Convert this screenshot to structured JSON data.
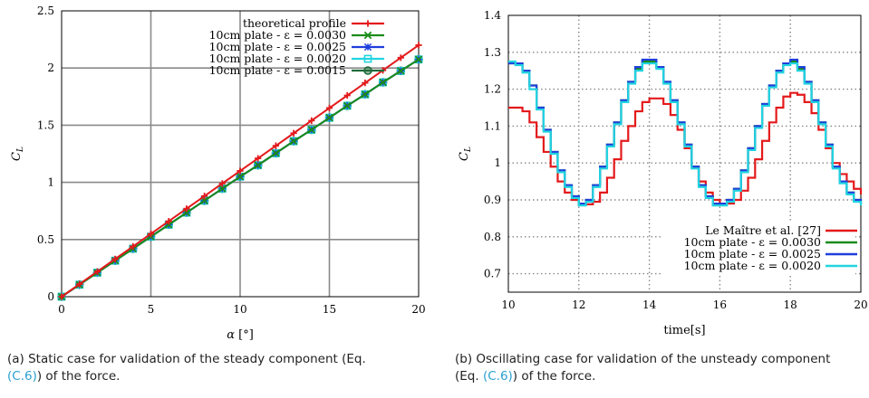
{
  "figures": [
    {
      "caption": {
        "text_before": "(a) Static case for validation of the steady component (Eq. ",
        "ref": "(C.6)",
        "text_after": ") of the force."
      }
    },
    {
      "caption": {
        "text_before": "(b) Oscillating case for validation of the unsteady component (Eq. ",
        "ref": "(C.6)",
        "text_after": ") of the force."
      }
    }
  ],
  "chart_data": [
    {
      "type": "line",
      "xlabel": "α [°]",
      "ylabel": "C_L",
      "xlim": [
        0,
        20
      ],
      "ylim": [
        0,
        2.5
      ],
      "xticks": [
        "0",
        "5",
        "10",
        "15",
        "20"
      ],
      "yticks": [
        "0",
        "0.5",
        "1",
        "1.5",
        "2",
        "2.5"
      ],
      "grid": true,
      "legend_position": "top-right",
      "x": [
        0,
        1,
        2,
        3,
        4,
        5,
        6,
        7,
        8,
        9,
        10,
        11,
        12,
        13,
        14,
        15,
        16,
        17,
        18,
        19,
        20
      ],
      "series": [
        {
          "name": "theoretical profile",
          "color": "#e31a1c",
          "marker": "plus",
          "values": [
            0,
            0.11,
            0.22,
            0.33,
            0.44,
            0.55,
            0.66,
            0.77,
            0.88,
            0.99,
            1.1,
            1.21,
            1.32,
            1.43,
            1.54,
            1.65,
            1.76,
            1.87,
            1.98,
            2.09,
            2.2
          ]
        },
        {
          "name": "10cm plate - ε = 0.0030",
          "color": "#1a8c1a",
          "marker": "x",
          "values": [
            0,
            0.105,
            0.21,
            0.315,
            0.42,
            0.525,
            0.63,
            0.735,
            0.84,
            0.945,
            1.05,
            1.15,
            1.255,
            1.36,
            1.46,
            1.565,
            1.67,
            1.77,
            1.875,
            1.975,
            2.075
          ]
        },
        {
          "name": "10cm plate - ε = 0.0025",
          "color": "#1f3fdc",
          "marker": "asterisk",
          "values": [
            0,
            0.105,
            0.21,
            0.315,
            0.42,
            0.525,
            0.63,
            0.735,
            0.84,
            0.945,
            1.05,
            1.15,
            1.255,
            1.36,
            1.46,
            1.565,
            1.67,
            1.77,
            1.875,
            1.975,
            2.075
          ]
        },
        {
          "name": "10cm plate - ε = 0.0020",
          "color": "#21d4e0",
          "marker": "square",
          "values": [
            0,
            0.105,
            0.21,
            0.315,
            0.42,
            0.525,
            0.63,
            0.735,
            0.84,
            0.945,
            1.05,
            1.15,
            1.255,
            1.36,
            1.46,
            1.565,
            1.67,
            1.77,
            1.875,
            1.975,
            2.075
          ]
        },
        {
          "name": "10cm plate - ε = 0.0015",
          "color": "#1f6b3a",
          "marker": "circle",
          "values": [
            0,
            0.105,
            0.21,
            0.315,
            0.42,
            0.525,
            0.63,
            0.735,
            0.84,
            0.945,
            1.05,
            1.15,
            1.255,
            1.36,
            1.46,
            1.565,
            1.67,
            1.77,
            1.875,
            1.975,
            2.075
          ]
        }
      ]
    },
    {
      "type": "line",
      "xlabel": "time[s]",
      "ylabel": "C_L",
      "xlim": [
        10,
        20
      ],
      "ylim": [
        0.65,
        1.4
      ],
      "xticks": [
        "10",
        "12",
        "14",
        "16",
        "18",
        "20"
      ],
      "yticks": [
        "0.7",
        "0.8",
        "0.9",
        "1",
        "1.1",
        "1.2",
        "1.3",
        "1.4"
      ],
      "grid": true,
      "legend_position": "bottom-right",
      "series": [
        {
          "name": "Le Maître et al. [27]",
          "color": "#e31a1c",
          "x": [
            10,
            10.2,
            10.4,
            10.6,
            10.8,
            11,
            11.2,
            11.4,
            11.6,
            11.8,
            12,
            12.2,
            12.4,
            12.6,
            12.8,
            13,
            13.2,
            13.4,
            13.6,
            13.8,
            14,
            14.2,
            14.4,
            14.6,
            14.8,
            15,
            15.2,
            15.4,
            15.6,
            15.8,
            16,
            16.2,
            16.4,
            16.6,
            16.8,
            17,
            17.2,
            17.4,
            17.6,
            17.8,
            18,
            18.2,
            18.4,
            18.6,
            18.8,
            19,
            19.2,
            19.4,
            19.6,
            19.8,
            20
          ],
          "values": [
            1.15,
            1.15,
            1.14,
            1.11,
            1.07,
            1.03,
            0.99,
            0.95,
            0.92,
            0.9,
            0.888,
            0.888,
            0.895,
            0.92,
            0.96,
            1.01,
            1.06,
            1.1,
            1.14,
            1.165,
            1.175,
            1.175,
            1.16,
            1.13,
            1.09,
            1.04,
            0.99,
            0.95,
            0.92,
            0.9,
            0.89,
            0.89,
            0.9,
            0.925,
            0.96,
            1.01,
            1.06,
            1.11,
            1.15,
            1.18,
            1.19,
            1.185,
            1.165,
            1.135,
            1.09,
            1.04,
            1.0,
            0.97,
            0.95,
            0.93,
            0.915
          ]
        },
        {
          "name": "10cm plate - ε = 0.0030",
          "color": "#1a8c1a",
          "x": [
            10,
            10.2,
            10.4,
            10.6,
            10.8,
            11,
            11.2,
            11.4,
            11.6,
            11.8,
            12,
            12.2,
            12.4,
            12.6,
            12.8,
            13,
            13.2,
            13.4,
            13.6,
            13.8,
            14,
            14.2,
            14.4,
            14.6,
            14.8,
            15,
            15.2,
            15.4,
            15.6,
            15.8,
            16,
            16.2,
            16.4,
            16.6,
            16.8,
            17,
            17.2,
            17.4,
            17.6,
            17.8,
            18,
            18.2,
            18.4,
            18.6,
            18.8,
            19,
            19.2,
            19.4,
            19.6,
            19.8,
            20
          ],
          "values": [
            1.27,
            1.27,
            1.25,
            1.21,
            1.15,
            1.09,
            1.03,
            0.98,
            0.94,
            0.91,
            0.89,
            0.9,
            0.94,
            0.99,
            1.05,
            1.11,
            1.17,
            1.22,
            1.255,
            1.275,
            1.275,
            1.26,
            1.22,
            1.17,
            1.11,
            1.05,
            0.99,
            0.94,
            0.91,
            0.89,
            0.89,
            0.9,
            0.93,
            0.98,
            1.04,
            1.1,
            1.16,
            1.21,
            1.25,
            1.27,
            1.275,
            1.255,
            1.22,
            1.17,
            1.11,
            1.05,
            0.99,
            0.95,
            0.92,
            0.9,
            0.89
          ]
        },
        {
          "name": "10cm plate - ε = 0.0025",
          "color": "#1f3fdc",
          "x": [
            10,
            10.2,
            10.4,
            10.6,
            10.8,
            11,
            11.2,
            11.4,
            11.6,
            11.8,
            12,
            12.2,
            12.4,
            12.6,
            12.8,
            13,
            13.2,
            13.4,
            13.6,
            13.8,
            14,
            14.2,
            14.4,
            14.6,
            14.8,
            15,
            15.2,
            15.4,
            15.6,
            15.8,
            16,
            16.2,
            16.4,
            16.6,
            16.8,
            17,
            17.2,
            17.4,
            17.6,
            17.8,
            18,
            18.2,
            18.4,
            18.6,
            18.8,
            19,
            19.2,
            19.4,
            19.6,
            19.8,
            20
          ],
          "values": [
            1.27,
            1.27,
            1.25,
            1.21,
            1.15,
            1.09,
            1.03,
            0.98,
            0.94,
            0.91,
            0.89,
            0.9,
            0.94,
            0.99,
            1.05,
            1.11,
            1.17,
            1.22,
            1.26,
            1.28,
            1.28,
            1.26,
            1.22,
            1.17,
            1.11,
            1.05,
            0.99,
            0.94,
            0.91,
            0.89,
            0.89,
            0.9,
            0.93,
            0.98,
            1.04,
            1.1,
            1.16,
            1.21,
            1.25,
            1.27,
            1.28,
            1.26,
            1.22,
            1.17,
            1.11,
            1.05,
            0.99,
            0.95,
            0.92,
            0.9,
            0.89
          ]
        },
        {
          "name": "10cm plate - ε = 0.0020",
          "color": "#21d4e0",
          "x": [
            10,
            10.2,
            10.4,
            10.6,
            10.8,
            11,
            11.2,
            11.4,
            11.6,
            11.8,
            12,
            12.2,
            12.4,
            12.6,
            12.8,
            13,
            13.2,
            13.4,
            13.6,
            13.8,
            14,
            14.2,
            14.4,
            14.6,
            14.8,
            15,
            15.2,
            15.4,
            15.6,
            15.8,
            16,
            16.2,
            16.4,
            16.6,
            16.8,
            17,
            17.2,
            17.4,
            17.6,
            17.8,
            18,
            18.2,
            18.4,
            18.6,
            18.8,
            19,
            19.2,
            19.4,
            19.6,
            19.8,
            20
          ],
          "values": [
            1.275,
            1.265,
            1.245,
            1.2,
            1.145,
            1.085,
            1.025,
            0.975,
            0.935,
            0.905,
            0.885,
            0.895,
            0.935,
            0.985,
            1.045,
            1.105,
            1.165,
            1.215,
            1.25,
            1.27,
            1.27,
            1.255,
            1.215,
            1.165,
            1.105,
            1.045,
            0.985,
            0.935,
            0.905,
            0.885,
            0.885,
            0.895,
            0.925,
            0.975,
            1.035,
            1.095,
            1.155,
            1.205,
            1.245,
            1.265,
            1.27,
            1.25,
            1.215,
            1.165,
            1.105,
            1.045,
            0.985,
            0.945,
            0.915,
            0.895,
            0.885
          ]
        }
      ]
    }
  ]
}
